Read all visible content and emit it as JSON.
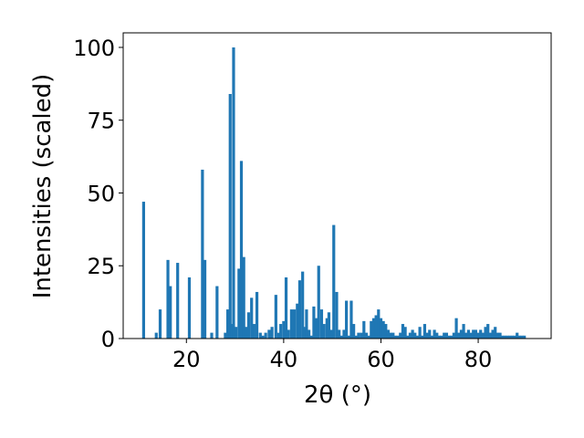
{
  "chart_data": {
    "type": "bar",
    "xlabel": "2θ (°)",
    "ylabel": "Intensities (scaled)",
    "xlim": [
      7,
      95
    ],
    "ylim": [
      0,
      105
    ],
    "xticks": [
      20,
      40,
      60,
      80
    ],
    "yticks": [
      0,
      25,
      50,
      75,
      100
    ],
    "xtick_labels": [
      "20",
      "40",
      "60",
      "80"
    ],
    "ytick_labels": [
      "0",
      "25",
      "50",
      "75",
      "100"
    ],
    "bar_color": "#1f77b4",
    "bar_width": 0.6,
    "x": [
      11.2,
      13.8,
      14.6,
      16.2,
      16.7,
      18.2,
      20.6,
      23.3,
      23.8,
      25.2,
      26.3,
      28.0,
      28.5,
      29.0,
      29.4,
      29.7,
      30.2,
      30.8,
      31.3,
      31.8,
      32.3,
      32.8,
      33.4,
      33.9,
      34.5,
      35.2,
      35.7,
      36.3,
      37.0,
      37.6,
      38.4,
      39.0,
      39.4,
      40.0,
      40.5,
      41.0,
      41.6,
      42.2,
      42.8,
      43.3,
      43.9,
      44.3,
      44.7,
      45.2,
      45.7,
      46.2,
      46.7,
      47.2,
      47.8,
      48.3,
      48.9,
      49.3,
      49.8,
      50.3,
      50.9,
      51.4,
      51.9,
      52.4,
      52.9,
      53.4,
      53.9,
      54.4,
      54.9,
      55.4,
      56.0,
      56.5,
      57.0,
      57.5,
      58.0,
      58.5,
      59.0,
      59.5,
      60.0,
      60.5,
      61.0,
      61.5,
      62.0,
      62.5,
      63.0,
      63.5,
      64.0,
      64.5,
      65.0,
      65.5,
      66.0,
      66.5,
      67.0,
      67.5,
      68.0,
      68.5,
      69.0,
      69.5,
      70.0,
      70.5,
      71.0,
      71.5,
      72.0,
      72.5,
      73.0,
      73.5,
      74.0,
      74.5,
      75.0,
      75.5,
      76.0,
      76.5,
      77.0,
      77.5,
      78.0,
      78.5,
      79.0,
      79.5,
      80.0,
      80.5,
      81.0,
      81.5,
      82.0,
      82.5,
      83.0,
      83.5,
      84.0,
      84.5,
      85.0,
      85.5,
      86.0,
      86.5,
      87.0,
      87.5,
      88.0,
      88.5,
      89.0,
      89.5
    ],
    "values": [
      47,
      2,
      10,
      27,
      18,
      26,
      21,
      58,
      27,
      2,
      18,
      2,
      10,
      84,
      5,
      100,
      4,
      24,
      61,
      28,
      4,
      9,
      14,
      5,
      16,
      2,
      1,
      2,
      3,
      4,
      15,
      2,
      5,
      6,
      21,
      3,
      10,
      10,
      12,
      20,
      23,
      4,
      10,
      3,
      1,
      11,
      7,
      25,
      10,
      5,
      7,
      9,
      3,
      39,
      16,
      3,
      1,
      3,
      13,
      1,
      13,
      5,
      1,
      2,
      2,
      6,
      2,
      1,
      6,
      7,
      8,
      10,
      7,
      6,
      5,
      3,
      2,
      2,
      1,
      1,
      2,
      5,
      4,
      1,
      2,
      3,
      2,
      1,
      4,
      1,
      5,
      2,
      3,
      1,
      3,
      2,
      1,
      1,
      2,
      2,
      1,
      1,
      2,
      7,
      2,
      3,
      5,
      2,
      3,
      2,
      3,
      3,
      2,
      3,
      2,
      4,
      5,
      2,
      3,
      4,
      2,
      2,
      1,
      1,
      1,
      1,
      1,
      1,
      2,
      1,
      1,
      1
    ]
  }
}
